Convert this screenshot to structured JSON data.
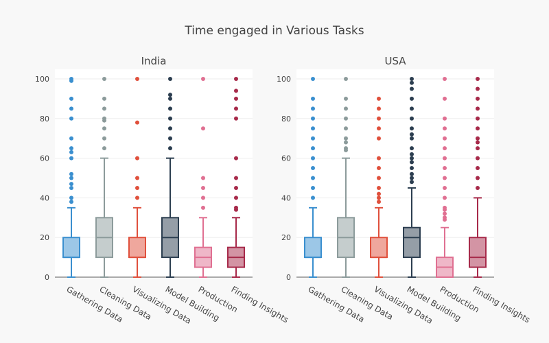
{
  "title": "Time engaged in Various Tasks",
  "colors": {
    "Gathering Data": "#3a8fcf",
    "Cleaning Data": "#8c9b9b",
    "Visualizing Data": "#e0503c",
    "Model Building": "#2c3e50",
    "Production": "#e07092",
    "Finding Insights": "#a72a4a"
  },
  "chart_data": {
    "type": "box",
    "ylim": [
      0,
      100
    ],
    "yticks": [
      0,
      20,
      40,
      60,
      80,
      100
    ],
    "grid": true,
    "categories": [
      "Gathering Data",
      "Cleaning Data",
      "Visualizing Data",
      "Model Building",
      "Production",
      "Finding Insights"
    ],
    "panels": [
      {
        "name": "India",
        "boxes": [
          {
            "category": "Gathering Data",
            "lowerfence": 0,
            "q1": 10,
            "median": 10,
            "q3": 20,
            "upperfence": 35,
            "outliers": [
              38,
              40,
              45,
              47,
              50,
              52,
              60,
              63,
              65,
              70,
              80,
              85,
              90,
              99,
              100
            ]
          },
          {
            "category": "Cleaning Data",
            "lowerfence": 0,
            "q1": 10,
            "median": 20,
            "q3": 30,
            "upperfence": 60,
            "outliers": [
              65,
              70,
              75,
              79,
              80,
              85,
              90,
              100
            ]
          },
          {
            "category": "Visualizing Data",
            "lowerfence": 0,
            "q1": 10,
            "median": 10,
            "q3": 20,
            "upperfence": 35,
            "outliers": [
              40,
              45,
              50,
              60,
              78,
              100
            ]
          },
          {
            "category": "Model Building",
            "lowerfence": 0,
            "q1": 10,
            "median": 20,
            "q3": 30,
            "upperfence": 60,
            "outliers": [
              65,
              70,
              75,
              80,
              85,
              90,
              92,
              100
            ]
          },
          {
            "category": "Production",
            "lowerfence": 0,
            "q1": 5,
            "median": 10,
            "q3": 15,
            "upperfence": 30,
            "outliers": [
              35,
              40,
              45,
              50,
              75,
              100
            ]
          },
          {
            "category": "Finding Insights",
            "lowerfence": 0,
            "q1": 5,
            "median": 10,
            "q3": 15,
            "upperfence": 30,
            "outliers": [
              34,
              35,
              40,
              45,
              50,
              60,
              80,
              85,
              90,
              94,
              100
            ]
          }
        ]
      },
      {
        "name": "USA",
        "boxes": [
          {
            "category": "Gathering Data",
            "lowerfence": 0,
            "q1": 10,
            "median": 10,
            "q3": 20,
            "upperfence": 35,
            "outliers": [
              40,
              45,
              50,
              55,
              60,
              65,
              70,
              75,
              80,
              85,
              90,
              100
            ]
          },
          {
            "category": "Cleaning Data",
            "lowerfence": 0,
            "q1": 10,
            "median": 20,
            "q3": 30,
            "upperfence": 60,
            "outliers": [
              64,
              65,
              68,
              70,
              75,
              80,
              85,
              90,
              100
            ]
          },
          {
            "category": "Visualizing Data",
            "lowerfence": 0,
            "q1": 10,
            "median": 10,
            "q3": 20,
            "upperfence": 35,
            "outliers": [
              38,
              40,
              42,
              45,
              50,
              55,
              60,
              70,
              75,
              80,
              85,
              90
            ]
          },
          {
            "category": "Model Building",
            "lowerfence": 0,
            "q1": 10,
            "median": 20,
            "q3": 25,
            "upperfence": 45,
            "outliers": [
              48,
              50,
              52,
              55,
              58,
              60,
              62,
              65,
              70,
              72,
              75,
              80,
              85,
              90,
              95,
              98,
              100
            ]
          },
          {
            "category": "Production",
            "lowerfence": 0,
            "q1": 0,
            "median": 5,
            "q3": 10,
            "upperfence": 25,
            "outliers": [
              29,
              30,
              32,
              34,
              35,
              40,
              45,
              50,
              55,
              60,
              65,
              70,
              75,
              80,
              90,
              100
            ]
          },
          {
            "category": "Finding Insights",
            "lowerfence": 0,
            "q1": 5,
            "median": 10,
            "q3": 20,
            "upperfence": 40,
            "outliers": [
              45,
              50,
              55,
              60,
              65,
              68,
              70,
              75,
              80,
              85,
              90,
              95,
              100
            ]
          }
        ]
      }
    ]
  }
}
